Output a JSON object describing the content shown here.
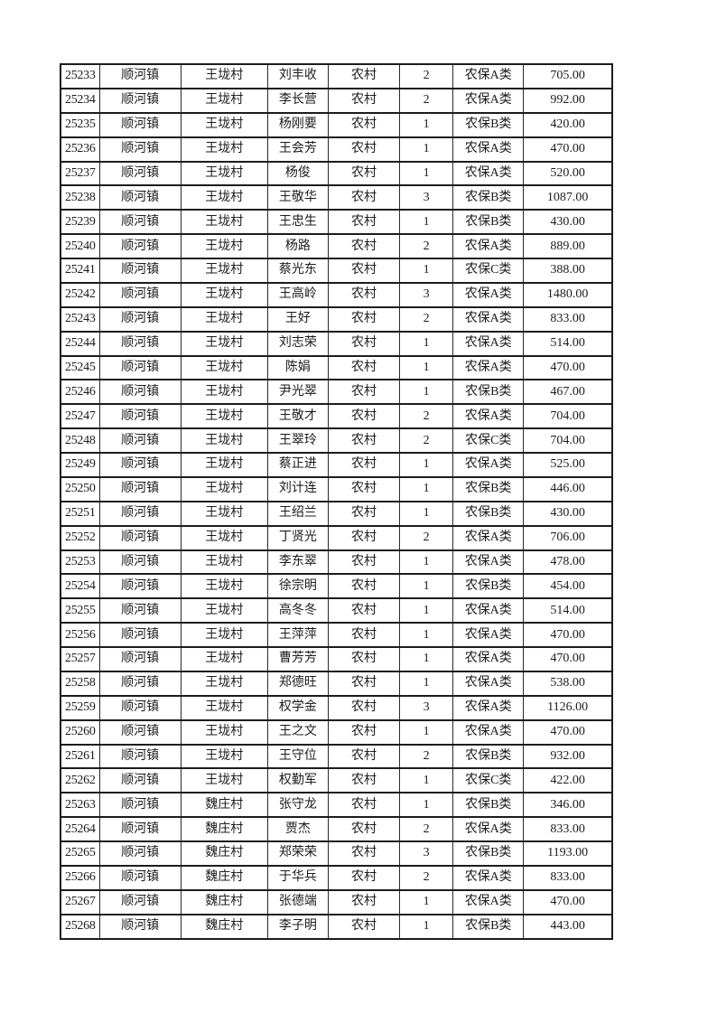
{
  "table": {
    "rows": [
      [
        "25233",
        "顺河镇",
        "王垅村",
        "刘丰收",
        "农村",
        "2",
        "农保A类",
        "705.00"
      ],
      [
        "25234",
        "顺河镇",
        "王垅村",
        "李长营",
        "农村",
        "2",
        "农保A类",
        "992.00"
      ],
      [
        "25235",
        "顺河镇",
        "王垅村",
        "杨刚要",
        "农村",
        "1",
        "农保B类",
        "420.00"
      ],
      [
        "25236",
        "顺河镇",
        "王垅村",
        "王会芳",
        "农村",
        "1",
        "农保A类",
        "470.00"
      ],
      [
        "25237",
        "顺河镇",
        "王垅村",
        "杨俊",
        "农村",
        "1",
        "农保A类",
        "520.00"
      ],
      [
        "25238",
        "顺河镇",
        "王垅村",
        "王敬华",
        "农村",
        "3",
        "农保B类",
        "1087.00"
      ],
      [
        "25239",
        "顺河镇",
        "王垅村",
        "王忠生",
        "农村",
        "1",
        "农保B类",
        "430.00"
      ],
      [
        "25240",
        "顺河镇",
        "王垅村",
        "杨路",
        "农村",
        "2",
        "农保A类",
        "889.00"
      ],
      [
        "25241",
        "顺河镇",
        "王垅村",
        "蔡光东",
        "农村",
        "1",
        "农保C类",
        "388.00"
      ],
      [
        "25242",
        "顺河镇",
        "王垅村",
        "王高岭",
        "农村",
        "3",
        "农保A类",
        "1480.00"
      ],
      [
        "25243",
        "顺河镇",
        "王垅村",
        "王好",
        "农村",
        "2",
        "农保A类",
        "833.00"
      ],
      [
        "25244",
        "顺河镇",
        "王垅村",
        "刘志荣",
        "农村",
        "1",
        "农保A类",
        "514.00"
      ],
      [
        "25245",
        "顺河镇",
        "王垅村",
        "陈娟",
        "农村",
        "1",
        "农保A类",
        "470.00"
      ],
      [
        "25246",
        "顺河镇",
        "王垅村",
        "尹光翠",
        "农村",
        "1",
        "农保B类",
        "467.00"
      ],
      [
        "25247",
        "顺河镇",
        "王垅村",
        "王敬才",
        "农村",
        "2",
        "农保A类",
        "704.00"
      ],
      [
        "25248",
        "顺河镇",
        "王垅村",
        "王翠玲",
        "农村",
        "2",
        "农保C类",
        "704.00"
      ],
      [
        "25249",
        "顺河镇",
        "王垅村",
        "蔡正进",
        "农村",
        "1",
        "农保A类",
        "525.00"
      ],
      [
        "25250",
        "顺河镇",
        "王垅村",
        "刘计连",
        "农村",
        "1",
        "农保B类",
        "446.00"
      ],
      [
        "25251",
        "顺河镇",
        "王垅村",
        "王绍兰",
        "农村",
        "1",
        "农保B类",
        "430.00"
      ],
      [
        "25252",
        "顺河镇",
        "王垅村",
        "丁贤光",
        "农村",
        "2",
        "农保A类",
        "706.00"
      ],
      [
        "25253",
        "顺河镇",
        "王垅村",
        "李东翠",
        "农村",
        "1",
        "农保A类",
        "478.00"
      ],
      [
        "25254",
        "顺河镇",
        "王垅村",
        "徐宗明",
        "农村",
        "1",
        "农保B类",
        "454.00"
      ],
      [
        "25255",
        "顺河镇",
        "王垅村",
        "高冬冬",
        "农村",
        "1",
        "农保A类",
        "514.00"
      ],
      [
        "25256",
        "顺河镇",
        "王垅村",
        "王萍萍",
        "农村",
        "1",
        "农保A类",
        "470.00"
      ],
      [
        "25257",
        "顺河镇",
        "王垅村",
        "曹芳芳",
        "农村",
        "1",
        "农保A类",
        "470.00"
      ],
      [
        "25258",
        "顺河镇",
        "王垅村",
        "郑德旺",
        "农村",
        "1",
        "农保A类",
        "538.00"
      ],
      [
        "25259",
        "顺河镇",
        "王垅村",
        "权学金",
        "农村",
        "3",
        "农保A类",
        "1126.00"
      ],
      [
        "25260",
        "顺河镇",
        "王垅村",
        "王之文",
        "农村",
        "1",
        "农保A类",
        "470.00"
      ],
      [
        "25261",
        "顺河镇",
        "王垅村",
        "王守位",
        "农村",
        "2",
        "农保B类",
        "932.00"
      ],
      [
        "25262",
        "顺河镇",
        "王垅村",
        "权勤军",
        "农村",
        "1",
        "农保C类",
        "422.00"
      ],
      [
        "25263",
        "顺河镇",
        "魏庄村",
        "张守龙",
        "农村",
        "1",
        "农保B类",
        "346.00"
      ],
      [
        "25264",
        "顺河镇",
        "魏庄村",
        "贾杰",
        "农村",
        "2",
        "农保A类",
        "833.00"
      ],
      [
        "25265",
        "顺河镇",
        "魏庄村",
        "郑荣荣",
        "农村",
        "3",
        "农保B类",
        "1193.00"
      ],
      [
        "25266",
        "顺河镇",
        "魏庄村",
        "于华兵",
        "农村",
        "2",
        "农保A类",
        "833.00"
      ],
      [
        "25267",
        "顺河镇",
        "魏庄村",
        "张德端",
        "农村",
        "1",
        "农保A类",
        "470.00"
      ],
      [
        "25268",
        "顺河镇",
        "魏庄村",
        "李子明",
        "农村",
        "1",
        "农保B类",
        "443.00"
      ]
    ]
  }
}
